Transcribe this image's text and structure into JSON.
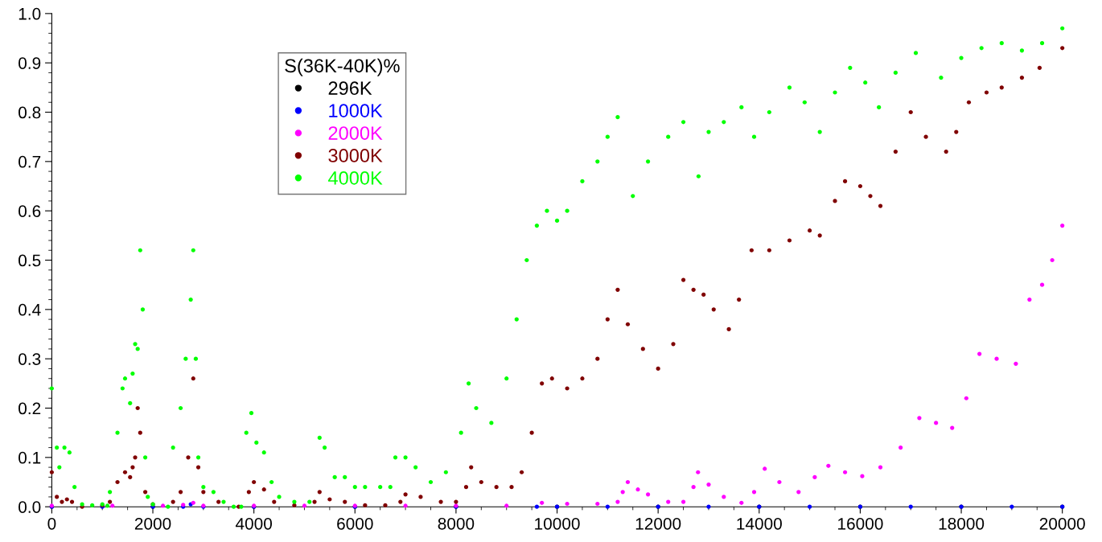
{
  "chart_data": {
    "type": "scatter",
    "legend_title": "S(36K-40K)%",
    "legend": "top left",
    "marker": "circle",
    "grid": false,
    "xlim": [
      0,
      20000
    ],
    "xticks": [
      0,
      2000,
      4000,
      6000,
      8000,
      10000,
      12000,
      14000,
      16000,
      18000,
      20000
    ],
    "ylim": [
      0,
      1.0
    ],
    "yticks": [
      {
        "value": 0,
        "label": "0.0"
      },
      0.1,
      0.2,
      0.3,
      0.4,
      0.5,
      0.6,
      0.7,
      0.8,
      0.9,
      {
        "value": 1.0,
        "label": "1.0"
      }
    ],
    "series": [
      {
        "name": "296K",
        "color": "#000000",
        "x": [
          0,
          2000,
          4000,
          6000,
          8000,
          10000,
          12000,
          14000,
          16000,
          18000,
          20000
        ],
        "values": [
          0,
          0,
          0,
          0,
          0,
          0,
          0,
          0,
          0,
          0,
          0
        ]
      },
      {
        "name": "1000K",
        "color": "#0000ff",
        "x": [
          0,
          1000,
          2000,
          2600,
          2750,
          3000,
          4000,
          6000,
          8000,
          9600,
          10000,
          11000,
          12000,
          13000,
          14000,
          15000,
          16000,
          17000,
          18000,
          19000,
          20000
        ],
        "values": [
          0,
          0,
          0,
          0,
          0.005,
          0,
          0,
          0,
          0,
          0,
          0,
          0,
          0,
          0,
          0,
          0,
          0,
          0,
          0,
          0,
          0
        ]
      },
      {
        "name": "2000K",
        "color": "#ff00ff",
        "x": [
          0,
          1200,
          2200,
          2600,
          2800,
          3000,
          4000,
          5000,
          6000,
          7000,
          8000,
          9000,
          9700,
          10200,
          10800,
          11200,
          11300,
          11400,
          11600,
          11800,
          12200,
          12500,
          12700,
          12790,
          13000,
          13300,
          13650,
          13900,
          14110,
          14400,
          14780,
          15100,
          15370,
          15700,
          16040,
          16400,
          16800,
          17170,
          17500,
          17820,
          18100,
          18360,
          18700,
          19080,
          19350,
          19600,
          19800,
          20000
        ],
        "values": [
          0.002,
          0.002,
          0.002,
          0.004,
          0.008,
          0.002,
          0.002,
          0.002,
          0.002,
          0.002,
          0.002,
          0.002,
          0.008,
          0.006,
          0.006,
          0.01,
          0.03,
          0.05,
          0.035,
          0.025,
          0.01,
          0.01,
          0.04,
          0.07,
          0.045,
          0.02,
          0.008,
          0.03,
          0.077,
          0.05,
          0.03,
          0.06,
          0.083,
          0.07,
          0.062,
          0.08,
          0.12,
          0.18,
          0.17,
          0.16,
          0.22,
          0.31,
          0.3,
          0.29,
          0.42,
          0.45,
          0.5,
          0.57
        ]
      },
      {
        "name": "3000K",
        "color": "#800000",
        "x": [
          0,
          100,
          200,
          300,
          400,
          600,
          1000,
          1150,
          1300,
          1450,
          1550,
          1600,
          1650,
          1700,
          1750,
          1850,
          2000,
          2400,
          2550,
          2700,
          2800,
          2900,
          3000,
          3300,
          3700,
          3900,
          4000,
          4200,
          4400,
          4800,
          5200,
          5300,
          5500,
          5800,
          6200,
          6600,
          6900,
          7000,
          7300,
          7700,
          8000,
          8200,
          8300,
          8500,
          8800,
          9100,
          9300,
          9500,
          9700,
          9900,
          10200,
          10500,
          10800,
          11000,
          11200,
          11400,
          11700,
          12000,
          12300,
          12500,
          12700,
          12900,
          13100,
          13400,
          13600,
          13850,
          14200,
          14600,
          15000,
          15200,
          15500,
          15700,
          16000,
          16200,
          16400,
          16700,
          17000,
          17300,
          17700,
          17900,
          18150,
          18500,
          18800,
          19200,
          19550,
          20000
        ],
        "values": [
          0.07,
          0.02,
          0.01,
          0.015,
          0.01,
          0.0,
          0.003,
          0.01,
          0.05,
          0.07,
          0.06,
          0.08,
          0.1,
          0.2,
          0.15,
          0.03,
          0.005,
          0.01,
          0.03,
          0.1,
          0.26,
          0.08,
          0.03,
          0.01,
          0.0,
          0.03,
          0.05,
          0.035,
          0.01,
          0.003,
          0.01,
          0.03,
          0.015,
          0.01,
          0.003,
          0.003,
          0.01,
          0.025,
          0.02,
          0.01,
          0.01,
          0.04,
          0.08,
          0.05,
          0.04,
          0.04,
          0.07,
          0.15,
          0.25,
          0.26,
          0.24,
          0.26,
          0.3,
          0.38,
          0.44,
          0.37,
          0.32,
          0.28,
          0.33,
          0.46,
          0.44,
          0.43,
          0.4,
          0.36,
          0.42,
          0.52,
          0.52,
          0.54,
          0.56,
          0.55,
          0.62,
          0.66,
          0.65,
          0.63,
          0.61,
          0.72,
          0.8,
          0.75,
          0.72,
          0.76,
          0.82,
          0.84,
          0.85,
          0.87,
          0.89,
          0.93
        ]
      },
      {
        "name": "4000K",
        "color": "#00ff00",
        "x": [
          0,
          100,
          150,
          250,
          350,
          450,
          600,
          800,
          1000,
          1100,
          1150,
          1300,
          1400,
          1450,
          1550,
          1600,
          1650,
          1700,
          1750,
          1800,
          1850,
          1900,
          2000,
          2300,
          2400,
          2550,
          2650,
          2750,
          2800,
          2850,
          2900,
          3000,
          3200,
          3400,
          3600,
          3750,
          3850,
          3950,
          4050,
          4200,
          4350,
          4500,
          4800,
          5100,
          5300,
          5400,
          5600,
          5800,
          6000,
          6200,
          6500,
          6700,
          6800,
          7000,
          7200,
          7500,
          7800,
          8100,
          8250,
          8400,
          8700,
          9000,
          9200,
          9400,
          9600,
          9800,
          10000,
          10200,
          10500,
          10800,
          11000,
          11200,
          11500,
          11800,
          12200,
          12500,
          12800,
          13000,
          13300,
          13650,
          13900,
          14200,
          14600,
          14900,
          15200,
          15500,
          15800,
          16100,
          16370,
          16700,
          17100,
          17600,
          18000,
          18400,
          18800,
          19200,
          19600,
          20000
        ],
        "values": [
          0.24,
          0.12,
          0.08,
          0.12,
          0.11,
          0.04,
          0.005,
          0.003,
          0.005,
          0.002,
          0.03,
          0.15,
          0.24,
          0.26,
          0.21,
          0.27,
          0.33,
          0.32,
          0.52,
          0.4,
          0.1,
          0.02,
          0.005,
          0.0,
          0.12,
          0.2,
          0.3,
          0.42,
          0.52,
          0.3,
          0.1,
          0.04,
          0.03,
          0.01,
          0.0,
          0.0,
          0.15,
          0.19,
          0.13,
          0.11,
          0.05,
          0.02,
          0.01,
          0.01,
          0.14,
          0.12,
          0.06,
          0.06,
          0.04,
          0.04,
          0.04,
          0.04,
          0.1,
          0.1,
          0.08,
          0.05,
          0.07,
          0.15,
          0.25,
          0.2,
          0.17,
          0.26,
          0.38,
          0.5,
          0.57,
          0.6,
          0.58,
          0.6,
          0.66,
          0.7,
          0.75,
          0.79,
          0.63,
          0.7,
          0.75,
          0.78,
          0.67,
          0.76,
          0.78,
          0.81,
          0.75,
          0.8,
          0.85,
          0.82,
          0.76,
          0.84,
          0.89,
          0.86,
          0.81,
          0.88,
          0.92,
          0.87,
          0.91,
          0.93,
          0.94,
          0.925,
          0.94,
          0.97
        ]
      }
    ]
  }
}
